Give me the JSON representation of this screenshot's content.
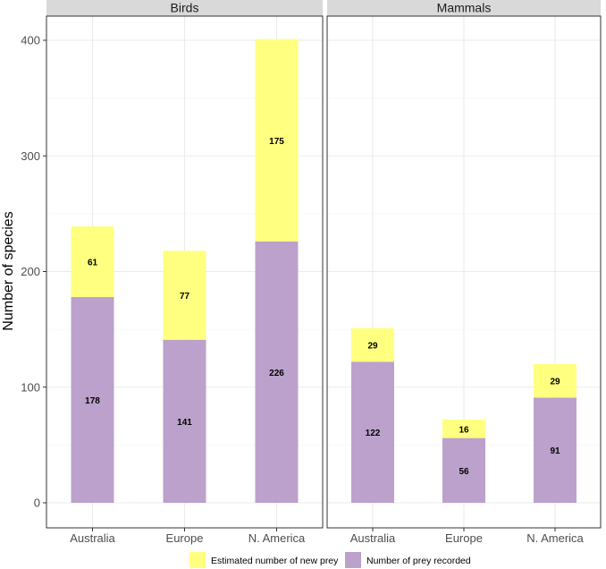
{
  "chart_data": {
    "type": "bar",
    "stacked": true,
    "ylabel": "Number of species",
    "xlabel": "",
    "ylim": [
      0,
      415
    ],
    "yticks": [
      0,
      100,
      200,
      300,
      400
    ],
    "categories": [
      "Australia",
      "Europe",
      "N. America"
    ],
    "grid": true,
    "legend_position": "bottom",
    "panels": [
      {
        "title": "Birds",
        "series": [
          {
            "name": "Number of prey recorded",
            "values": [
              178,
              141,
              226
            ]
          },
          {
            "name": "Estimated number of new prey",
            "values": [
              61,
              77,
              175
            ]
          }
        ]
      },
      {
        "title": "Mammals",
        "series": [
          {
            "name": "Number of prey recorded",
            "values": [
              122,
              56,
              91
            ]
          },
          {
            "name": "Estimated number of new prey",
            "values": [
              29,
              16,
              29
            ]
          }
        ]
      }
    ],
    "legend": [
      {
        "name": "Estimated number of new prey",
        "color": "#ffff80"
      },
      {
        "name": "Number of prey recorded",
        "color": "#bba1cb"
      }
    ],
    "colors": {
      "recorded": "#bba1cb",
      "estimated": "#ffff80",
      "strip": "#d9d9d9",
      "grid": "#ebebeb",
      "panel_border": "#333333"
    }
  }
}
